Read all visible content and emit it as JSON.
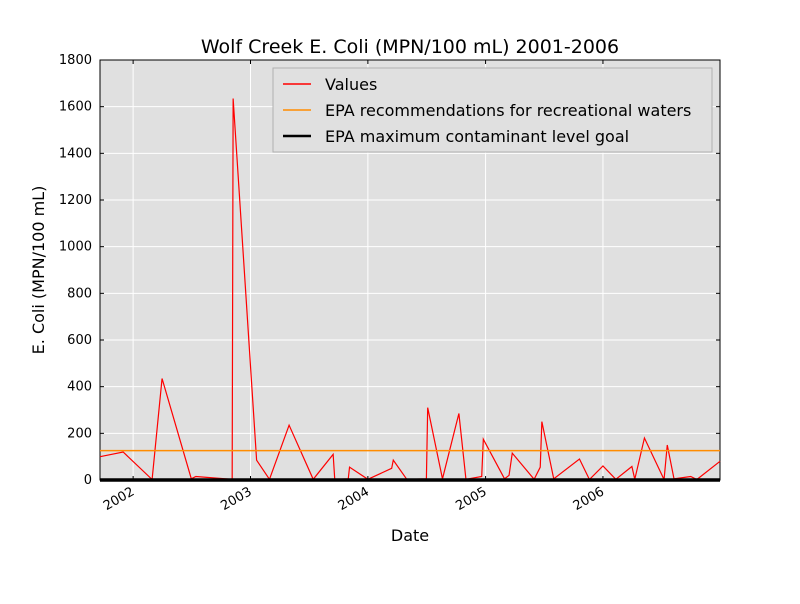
{
  "chart_data": {
    "type": "line",
    "title": "Wolf Creek E. Coli (MPN/100 mL) 2001-2006",
    "xlabel": "Date",
    "ylabel": "E. Coli (MPN/100 mL)",
    "xlim": [
      "2001-09-20",
      "2006-12-31"
    ],
    "ylim": [
      0,
      1800
    ],
    "x_ticks": [
      "2002-01-01",
      "2003-01-01",
      "2004-01-01",
      "2005-01-01",
      "2006-01-01"
    ],
    "x_tick_labels": [
      "2002",
      "2003",
      "2004",
      "2005",
      "2006"
    ],
    "y_ticks": [
      0,
      200,
      400,
      600,
      800,
      1000,
      1200,
      1400,
      1600,
      1800
    ],
    "grid": true,
    "legend_position": "top-right",
    "background": "#e0e0e0",
    "series": [
      {
        "name": "Values",
        "color": "#ff0000",
        "points": [
          [
            "2001-09-20",
            100
          ],
          [
            "2001-12-01",
            120
          ],
          [
            "2002-03-01",
            2
          ],
          [
            "2002-04-01",
            435
          ],
          [
            "2002-07-01",
            5
          ],
          [
            "2002-07-15",
            15
          ],
          [
            "2002-11-05",
            3
          ],
          [
            "2002-11-08",
            1635
          ],
          [
            "2003-01-20",
            85
          ],
          [
            "2003-03-01",
            3
          ],
          [
            "2003-05-01",
            235
          ],
          [
            "2003-07-15",
            3
          ],
          [
            "2003-09-15",
            110
          ],
          [
            "2003-09-20",
            3
          ],
          [
            "2003-11-01",
            5
          ],
          [
            "2003-11-05",
            55
          ],
          [
            "2004-01-01",
            3
          ],
          [
            "2004-03-15",
            50
          ],
          [
            "2004-03-20",
            85
          ],
          [
            "2004-05-01",
            3
          ],
          [
            "2004-07-01",
            5
          ],
          [
            "2004-07-05",
            310
          ],
          [
            "2004-08-20",
            5
          ],
          [
            "2004-10-10",
            285
          ],
          [
            "2004-11-01",
            3
          ],
          [
            "2004-12-20",
            15
          ],
          [
            "2004-12-25",
            175
          ],
          [
            "2005-03-01",
            5
          ],
          [
            "2005-03-15",
            20
          ],
          [
            "2005-03-25",
            115
          ],
          [
            "2005-06-01",
            3
          ],
          [
            "2005-06-20",
            55
          ],
          [
            "2005-06-25",
            250
          ],
          [
            "2005-08-01",
            5
          ],
          [
            "2005-10-20",
            90
          ],
          [
            "2005-11-20",
            2
          ],
          [
            "2006-01-01",
            60
          ],
          [
            "2006-02-10",
            3
          ],
          [
            "2006-04-01",
            58
          ],
          [
            "2006-04-10",
            3
          ],
          [
            "2006-05-10",
            180
          ],
          [
            "2006-07-10",
            2
          ],
          [
            "2006-07-20",
            150
          ],
          [
            "2006-08-10",
            5
          ],
          [
            "2006-10-01",
            15
          ],
          [
            "2006-10-20",
            2
          ],
          [
            "2006-12-31",
            80
          ]
        ]
      },
      {
        "name": "EPA recommendations for recreational waters",
        "color": "#ff8c00",
        "constant": 126
      },
      {
        "name": "EPA maximum contaminant level goal",
        "color": "#000000",
        "constant": 0
      }
    ]
  }
}
